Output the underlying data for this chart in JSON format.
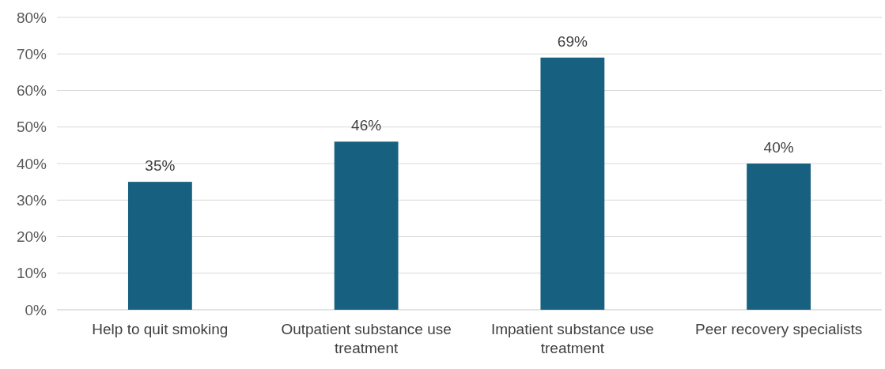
{
  "chart_data": {
    "type": "bar",
    "categories": [
      "Help to quit smoking",
      "Outpatient substance use treatment",
      "Impatient substance use treatment",
      "Peer recovery specialists"
    ],
    "values": [
      35,
      46,
      69,
      40
    ],
    "value_labels": [
      "35%",
      "46%",
      "69%",
      "40%"
    ],
    "color": "#17607f",
    "ylim": [
      0,
      80
    ],
    "yticks": [
      {
        "value": 0,
        "label": "0%"
      },
      {
        "value": 10,
        "label": "10%"
      },
      {
        "value": 20,
        "label": "20%"
      },
      {
        "value": 30,
        "label": "30%"
      },
      {
        "value": 40,
        "label": "40%"
      },
      {
        "value": 50,
        "label": "50%"
      },
      {
        "value": 60,
        "label": "60%"
      },
      {
        "value": 70,
        "label": "70%"
      },
      {
        "value": 80,
        "label": "80%"
      }
    ],
    "grid": "y"
  }
}
